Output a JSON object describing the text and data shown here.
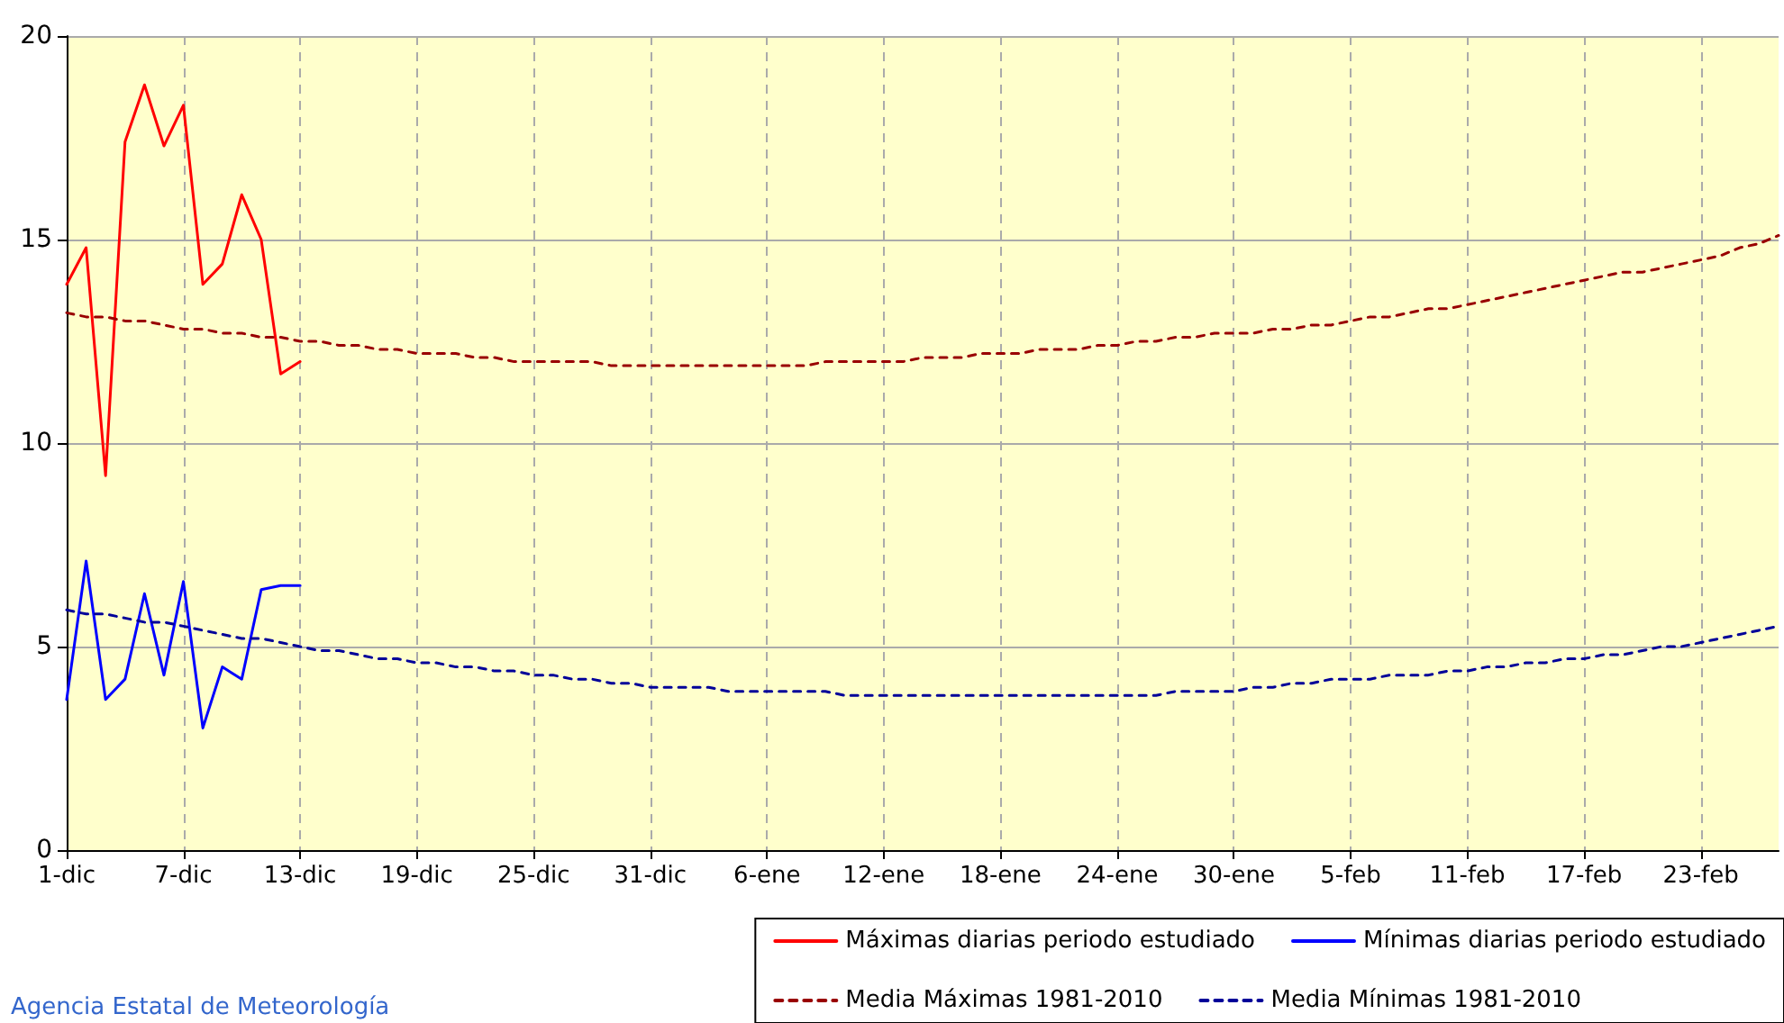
{
  "chart_data": {
    "type": "line",
    "categories": [
      "1-dic",
      null,
      null,
      null,
      null,
      null,
      "7-dic",
      null,
      null,
      null,
      null,
      null,
      "13-dic",
      null,
      null,
      null,
      null,
      null,
      "19-dic",
      null,
      null,
      null,
      null,
      null,
      "25-dic",
      null,
      null,
      null,
      null,
      null,
      "31-dic",
      null,
      null,
      null,
      null,
      null,
      "6-ene",
      null,
      null,
      null,
      null,
      null,
      "12-ene",
      null,
      null,
      null,
      null,
      null,
      "18-ene",
      null,
      null,
      null,
      null,
      null,
      "24-ene",
      null,
      null,
      null,
      null,
      null,
      "30-ene",
      null,
      null,
      null,
      null,
      null,
      "5-feb",
      null,
      null,
      null,
      null,
      null,
      "11-feb",
      null,
      null,
      null,
      null,
      null,
      "17-feb",
      null,
      null,
      null,
      null,
      null,
      "23-feb",
      null,
      null,
      null,
      null
    ],
    "series": [
      {
        "name": "Máximas diarias periodo estudiado",
        "color": "#ff0000",
        "line_style": "solid",
        "values": [
          13.9,
          14.8,
          9.2,
          17.4,
          18.8,
          17.3,
          18.3,
          13.9,
          14.4,
          16.1,
          15.0,
          11.7,
          12.0,
          null,
          null,
          null,
          null,
          null,
          null,
          null,
          null,
          null,
          null,
          null,
          null,
          null,
          null,
          null,
          null,
          null,
          null,
          null,
          null,
          null,
          null,
          null,
          null,
          null,
          null,
          null,
          null,
          null,
          null,
          null,
          null,
          null,
          null,
          null,
          null,
          null,
          null,
          null,
          null,
          null,
          null,
          null,
          null,
          null,
          null,
          null,
          null,
          null,
          null,
          null,
          null,
          null,
          null,
          null,
          null,
          null,
          null,
          null,
          null,
          null,
          null,
          null,
          null,
          null,
          null,
          null,
          null,
          null,
          null,
          null,
          null,
          null,
          null,
          null,
          null
        ]
      },
      {
        "name": "Mínimas diarias periodo estudiado",
        "color": "#0000ff",
        "line_style": "solid",
        "values": [
          3.7,
          7.1,
          3.7,
          4.2,
          6.3,
          4.3,
          6.6,
          3.0,
          4.5,
          4.2,
          6.4,
          6.5,
          6.5,
          null,
          null,
          null,
          null,
          null,
          null,
          null,
          null,
          null,
          null,
          null,
          null,
          null,
          null,
          null,
          null,
          null,
          null,
          null,
          null,
          null,
          null,
          null,
          null,
          null,
          null,
          null,
          null,
          null,
          null,
          null,
          null,
          null,
          null,
          null,
          null,
          null,
          null,
          null,
          null,
          null,
          null,
          null,
          null,
          null,
          null,
          null,
          null,
          null,
          null,
          null,
          null,
          null,
          null,
          null,
          null,
          null,
          null,
          null,
          null,
          null,
          null,
          null,
          null,
          null,
          null,
          null,
          null,
          null,
          null,
          null,
          null,
          null,
          null,
          null,
          null
        ]
      },
      {
        "name": "Media Máximas 1981-2010",
        "color": "#990000",
        "line_style": "dashed",
        "values": [
          13.2,
          13.1,
          13.1,
          13.0,
          13.0,
          12.9,
          12.8,
          12.8,
          12.7,
          12.7,
          12.6,
          12.6,
          12.5,
          12.5,
          12.4,
          12.4,
          12.3,
          12.3,
          12.2,
          12.2,
          12.2,
          12.1,
          12.1,
          12.0,
          12.0,
          12.0,
          12.0,
          12.0,
          11.9,
          11.9,
          11.9,
          11.9,
          11.9,
          11.9,
          11.9,
          11.9,
          11.9,
          11.9,
          11.9,
          12.0,
          12.0,
          12.0,
          12.0,
          12.0,
          12.1,
          12.1,
          12.1,
          12.2,
          12.2,
          12.2,
          12.3,
          12.3,
          12.3,
          12.4,
          12.4,
          12.5,
          12.5,
          12.6,
          12.6,
          12.7,
          12.7,
          12.7,
          12.8,
          12.8,
          12.9,
          12.9,
          13.0,
          13.1,
          13.1,
          13.2,
          13.3,
          13.3,
          13.4,
          13.5,
          13.6,
          13.7,
          13.8,
          13.9,
          14.0,
          14.1,
          14.2,
          14.2,
          14.3,
          14.4,
          14.5,
          14.6,
          14.8,
          14.9,
          15.1
        ]
      },
      {
        "name": "Media Mínimas 1981-2010",
        "color": "#000099",
        "line_style": "dashed",
        "values": [
          5.9,
          5.8,
          5.8,
          5.7,
          5.6,
          5.6,
          5.5,
          5.4,
          5.3,
          5.2,
          5.2,
          5.1,
          5.0,
          4.9,
          4.9,
          4.8,
          4.7,
          4.7,
          4.6,
          4.6,
          4.5,
          4.5,
          4.4,
          4.4,
          4.3,
          4.3,
          4.2,
          4.2,
          4.1,
          4.1,
          4.0,
          4.0,
          4.0,
          4.0,
          3.9,
          3.9,
          3.9,
          3.9,
          3.9,
          3.9,
          3.8,
          3.8,
          3.8,
          3.8,
          3.8,
          3.8,
          3.8,
          3.8,
          3.8,
          3.8,
          3.8,
          3.8,
          3.8,
          3.8,
          3.8,
          3.8,
          3.8,
          3.9,
          3.9,
          3.9,
          3.9,
          4.0,
          4.0,
          4.1,
          4.1,
          4.2,
          4.2,
          4.2,
          4.3,
          4.3,
          4.3,
          4.4,
          4.4,
          4.5,
          4.5,
          4.6,
          4.6,
          4.7,
          4.7,
          4.8,
          4.8,
          4.9,
          5.0,
          5.0,
          5.1,
          5.2,
          5.3,
          5.4,
          5.5
        ]
      }
    ],
    "ylim": [
      0,
      20
    ],
    "yticks": [
      0,
      5,
      10,
      15,
      20
    ],
    "grid": true,
    "legend": "bottom right",
    "marker": "none",
    "annotations": [
      "Agencia Estatal de Meteorología"
    ]
  }
}
